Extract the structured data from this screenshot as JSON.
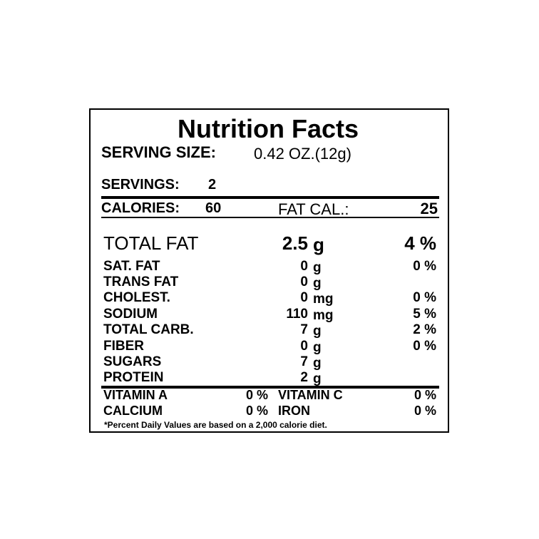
{
  "title": "Nutrition Facts",
  "serving_size": {
    "label": "SERVING SIZE:",
    "value": "0.42 OZ.(12g)"
  },
  "servings": {
    "label": "SERVINGS:",
    "value": 2
  },
  "calories": {
    "label": "CALORIES:",
    "value": 60,
    "fat_label": "FAT CAL.:",
    "fat_value": 25
  },
  "nutrients": [
    {
      "name": "TOTAL FAT",
      "amount": 2.5,
      "unit": "g",
      "dv": "4 %"
    },
    {
      "name": "SAT. FAT",
      "amount": 0,
      "unit": "g",
      "dv": "0 %"
    },
    {
      "name": "TRANS FAT",
      "amount": 0,
      "unit": "g"
    },
    {
      "name": "CHOLEST.",
      "amount": 0,
      "unit": "mg",
      "dv": "0 %"
    },
    {
      "name": "SODIUM",
      "amount": 110,
      "unit": "mg",
      "dv": "5 %"
    },
    {
      "name": "TOTAL CARB.",
      "amount": 7,
      "unit": "g",
      "dv": "2 %"
    },
    {
      "name": "FIBER",
      "amount": 0,
      "unit": "g",
      "dv": "0 %"
    },
    {
      "name": "SUGARS",
      "amount": 7,
      "unit": "g"
    },
    {
      "name": "PROTEIN",
      "amount": 2,
      "unit": "g"
    }
  ],
  "vitamins": [
    [
      {
        "name": "VITAMIN A",
        "dv": "0 %"
      },
      {
        "name": "VITAMIN C",
        "dv": "0 %"
      }
    ],
    [
      {
        "name": "CALCIUM",
        "dv": "0 %"
      },
      {
        "name": "IRON",
        "dv": "0 %"
      }
    ]
  ],
  "footnote": "*Percent Daily Values are based on a 2,000 calorie diet."
}
